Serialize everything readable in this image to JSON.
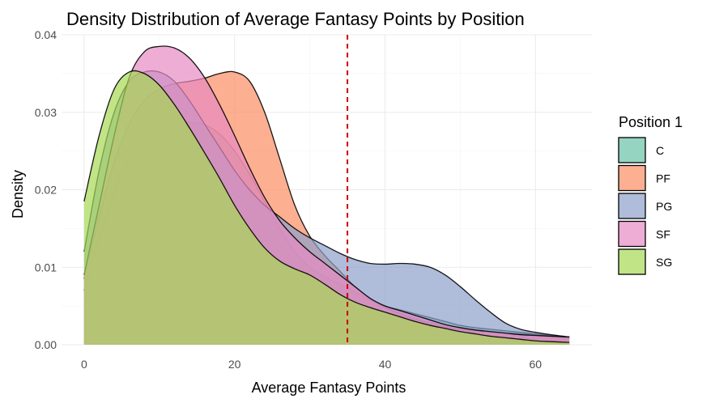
{
  "chart_data": {
    "type": "area",
    "title": "Density Distribution of Average Fantasy Points by Position",
    "xlabel": "Average Fantasy Points",
    "ylabel": "Density",
    "xlim": [
      -3,
      67.5
    ],
    "ylim": [
      0,
      0.04
    ],
    "x_ticks": [
      0,
      20,
      40,
      60
    ],
    "x_tick_labels": [
      "0",
      "20",
      "40",
      "60"
    ],
    "y_ticks": [
      0,
      0.01,
      0.02,
      0.03,
      0.04
    ],
    "y_tick_labels": [
      "0.00",
      "0.01",
      "0.02",
      "0.03",
      "0.04"
    ],
    "grid": true,
    "legend": {
      "title": "Position 1",
      "placement": "right"
    },
    "reference_line": {
      "x": 35,
      "color": "#cc0000",
      "style": "dashed"
    },
    "x": [
      0,
      2,
      4,
      6,
      8,
      10,
      12,
      14,
      16,
      18,
      20,
      22,
      24,
      26,
      28,
      30,
      32,
      34,
      36,
      38,
      40,
      42,
      44,
      46,
      48,
      50,
      52,
      54,
      56,
      58,
      60,
      62,
      64.5
    ],
    "series": [
      {
        "name": "C",
        "color": "#66C2A5",
        "values": [
          0.007,
          0.0135,
          0.0195,
          0.024,
          0.0265,
          0.0278,
          0.0285,
          0.0287,
          0.0284,
          0.0272,
          0.025,
          0.022,
          0.0185,
          0.015,
          0.012,
          0.01,
          0.0088,
          0.0078,
          0.0068,
          0.0058,
          0.005,
          0.0045,
          0.004,
          0.0035,
          0.003,
          0.0025,
          0.0022,
          0.002,
          0.0018,
          0.0016,
          0.0014,
          0.0012,
          0.001
        ]
      },
      {
        "name": "PF",
        "color": "#FC8D62",
        "values": [
          0.0085,
          0.0165,
          0.0235,
          0.0285,
          0.0315,
          0.033,
          0.0337,
          0.034,
          0.0344,
          0.035,
          0.0352,
          0.034,
          0.03,
          0.024,
          0.018,
          0.014,
          0.0115,
          0.0095,
          0.0075,
          0.006,
          0.0048,
          0.004,
          0.0033,
          0.0028,
          0.0023,
          0.002,
          0.0018,
          0.0016,
          0.0015,
          0.0014,
          0.0013,
          0.0011,
          0.0008
        ]
      },
      {
        "name": "PG",
        "color": "#8DA0CB",
        "values": [
          0.012,
          0.0225,
          0.03,
          0.034,
          0.0352,
          0.0352,
          0.034,
          0.0315,
          0.0285,
          0.0255,
          0.0225,
          0.02,
          0.018,
          0.0165,
          0.015,
          0.0138,
          0.0128,
          0.0118,
          0.011,
          0.0105,
          0.0104,
          0.0105,
          0.0104,
          0.01,
          0.009,
          0.0075,
          0.0058,
          0.0042,
          0.0028,
          0.002,
          0.0016,
          0.0013,
          0.001
        ]
      },
      {
        "name": "SF",
        "color": "#E78AC3",
        "values": [
          0.009,
          0.018,
          0.027,
          0.0345,
          0.0378,
          0.0385,
          0.0383,
          0.037,
          0.0345,
          0.031,
          0.027,
          0.0228,
          0.019,
          0.016,
          0.0138,
          0.012,
          0.0105,
          0.009,
          0.0075,
          0.006,
          0.005,
          0.0044,
          0.0038,
          0.0032,
          0.0026,
          0.0022,
          0.0019,
          0.0017,
          0.0015,
          0.0013,
          0.0012,
          0.0011,
          0.001
        ]
      },
      {
        "name": "SG",
        "color": "#A6D854",
        "values": [
          0.0185,
          0.027,
          0.033,
          0.0352,
          0.035,
          0.0335,
          0.031,
          0.028,
          0.0248,
          0.0215,
          0.018,
          0.015,
          0.0125,
          0.0108,
          0.0098,
          0.009,
          0.0078,
          0.0065,
          0.0055,
          0.0048,
          0.0042,
          0.0036,
          0.003,
          0.0025,
          0.0021,
          0.0017,
          0.0014,
          0.0011,
          0.0009,
          0.0007,
          0.0005,
          0.0004,
          0.0003
        ]
      }
    ]
  }
}
